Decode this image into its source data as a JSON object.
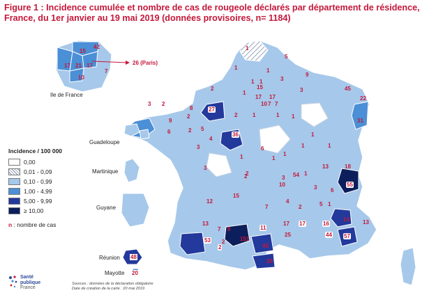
{
  "title_line1": "Figure 1 : Incidence cumulée et nombre de cas de rougeole déclarés par département de résidence,",
  "title_line2": "France, du 1er janvier au 19 mai 2019 (données provisoires, n= 1184)",
  "paris_label": "26 (Paris)",
  "idf_label": "Ile de France",
  "territories": {
    "guadeloupe": "Guadeloupe",
    "martinique": "Martinique",
    "guyane": "Guyane",
    "reunion": "Réunion",
    "mayotte": "Mayotte"
  },
  "legend": {
    "title": "Incidence / 100 000",
    "items": [
      {
        "label": "0,00",
        "color": "#ffffff"
      },
      {
        "label": "0,01 - 0,09",
        "color": "hatch"
      },
      {
        "label": "0,10 - 0,99",
        "color": "#a6c8ea"
      },
      {
        "label": "1,00 - 4,99",
        "color": "#4b8fd6"
      },
      {
        "label": "5,00 - 9,99",
        "color": "#23399c"
      },
      {
        "label": "≥ 10,00",
        "color": "#0c1f5c"
      }
    ],
    "cases_symbol": "n",
    "cases_label": " : nombre de cas"
  },
  "source": {
    "line1": "Sources : données de la déclaration obligatoire",
    "line2": "Date de création de la carte : 20 mai 2019"
  },
  "logo": {
    "line1": "Santé",
    "line2": "publique",
    "line3": "France"
  },
  "counts": {
    "idf": [
      "15",
      "42",
      "17",
      "21",
      "17",
      "10",
      "7"
    ],
    "reunion": "48",
    "mayotte": "20",
    "mainland": [
      "1",
      "5",
      "1",
      "1",
      "1",
      "9",
      "1",
      "3",
      "2",
      "15",
      "1",
      "3",
      "45",
      "22",
      "17",
      "17",
      "7",
      "10",
      "7",
      "3",
      "2",
      "8",
      "27",
      "2",
      "1",
      "1",
      "1",
      "31",
      "9",
      "2",
      "6",
      "2",
      "5",
      "36",
      "3",
      "4",
      "1",
      "1",
      "6",
      "1",
      "2",
      "1",
      "1",
      "1",
      "3",
      "2",
      "1",
      "13",
      "18",
      "3",
      "10",
      "3",
      "54",
      "55",
      "1",
      "6",
      "12",
      "15",
      "7",
      "4",
      "2",
      "5",
      "13",
      "8",
      "17",
      "17",
      "16",
      "14",
      "13",
      "7",
      "11",
      "2",
      "53",
      "2",
      "151",
      "45",
      "25",
      "44",
      "57",
      "26"
    ]
  }
}
